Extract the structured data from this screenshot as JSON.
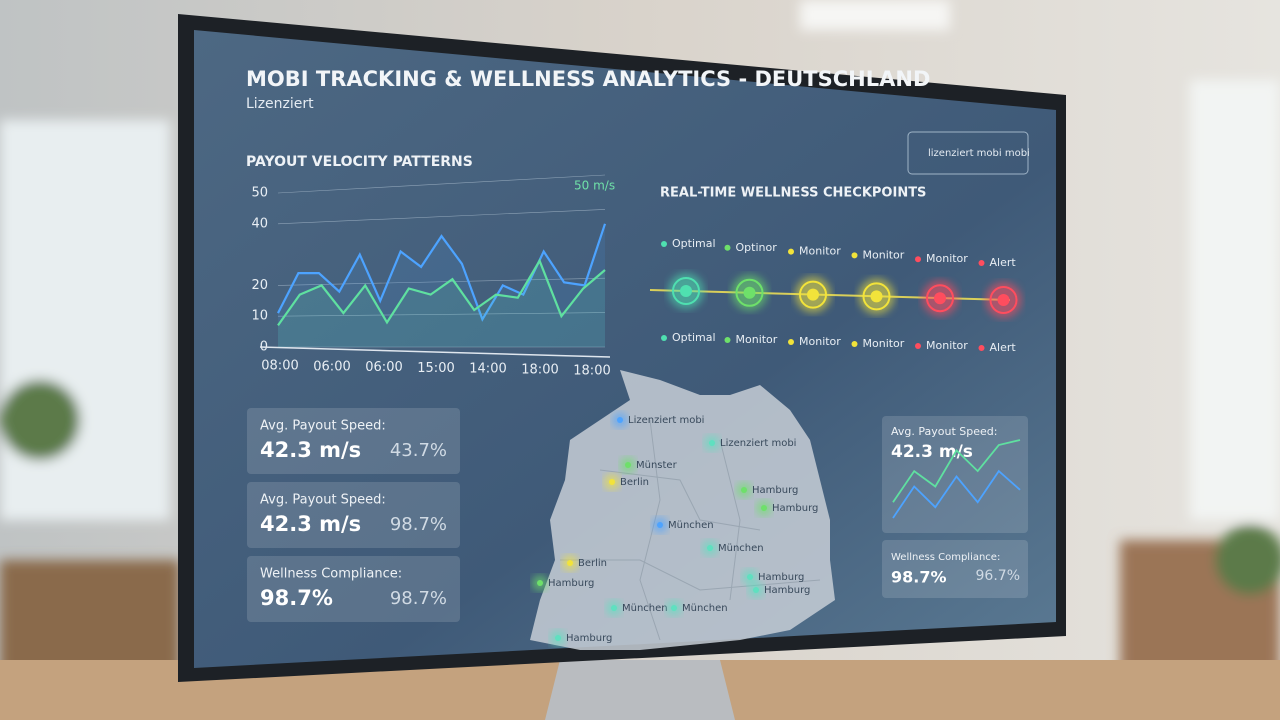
{
  "header": {
    "title": "MOBI TRACKING & WELLNESS ANALYTICS - DEUTSCHLAND",
    "subtitle": "Lizenziert",
    "dropdown": "lizenziert mobi mobi"
  },
  "payout_chart": {
    "title": "PAYOUT VELOCITY PATTERNS",
    "annotation": "50 m/s",
    "ylim": [
      0,
      50
    ],
    "yticks": [
      0,
      10,
      20,
      40,
      50
    ],
    "x_labels": [
      "08:00",
      "06:00",
      "06:00",
      "15:00",
      "14:00",
      "18:00",
      "18:00"
    ],
    "series": [
      {
        "color": "#4da3ff",
        "values": [
          11,
          24,
          24,
          18,
          30,
          15,
          31,
          26,
          36,
          27,
          9,
          20,
          17,
          31,
          21,
          20,
          40
        ]
      },
      {
        "color": "#5fe0a0",
        "values": [
          7,
          17,
          20,
          11,
          20,
          8,
          19,
          17,
          22,
          12,
          17,
          16,
          28,
          10,
          19,
          25
        ]
      }
    ]
  },
  "checkpoints": {
    "title": "REAL-TIME WELLNESS CHECKPOINTS",
    "top_labels": [
      "Optimal",
      "Optinor",
      "Monitor",
      "Monitor",
      "Monitor",
      "Alert"
    ],
    "bottom_labels": [
      "Optimal",
      "Monitor",
      "Monitor",
      "Monitor",
      "Monitor",
      "Alert"
    ],
    "colors": [
      "#4fe0b0",
      "#6ee06a",
      "#f2e33a",
      "#f2e33a",
      "#ff4d5e",
      "#ff4d5e"
    ]
  },
  "cards_left": [
    {
      "label": "Avg. Payout Speed:",
      "value": "42.3 m/s",
      "secondary": "43.7%"
    },
    {
      "label": "Avg. Payout Speed:",
      "value": "42.3 m/s",
      "secondary": "98.7%"
    },
    {
      "label": "Wellness Compliance:",
      "value": "98.7%",
      "secondary": "98.7%"
    }
  ],
  "cards_right": [
    {
      "label": "Avg. Payout Speed:",
      "value": "42.3 m/s",
      "mini_series": [
        {
          "color": "#5fe0a0",
          "values": [
            2.5,
            6.25,
            4.4,
            8.75,
            6.25,
            9.4,
            10
          ]
        },
        {
          "color": "#4da3ff",
          "values": [
            0.6,
            4.4,
            1.9,
            5.6,
            2.5,
            6.25,
            4
          ]
        }
      ]
    },
    {
      "label": "Wellness Compliance:",
      "value": "98.7%",
      "secondary": "96.7%"
    }
  ],
  "map": {
    "labels": [
      "Lizenziert mobi",
      "Lizenziert mobi",
      "Münster",
      "Berlin",
      "München",
      "Hamburg",
      "Hamburg",
      "München",
      "Berlin",
      "Hamburg",
      "Hamburg",
      "München",
      "München",
      "Hamburg",
      "Hamburg"
    ]
  }
}
